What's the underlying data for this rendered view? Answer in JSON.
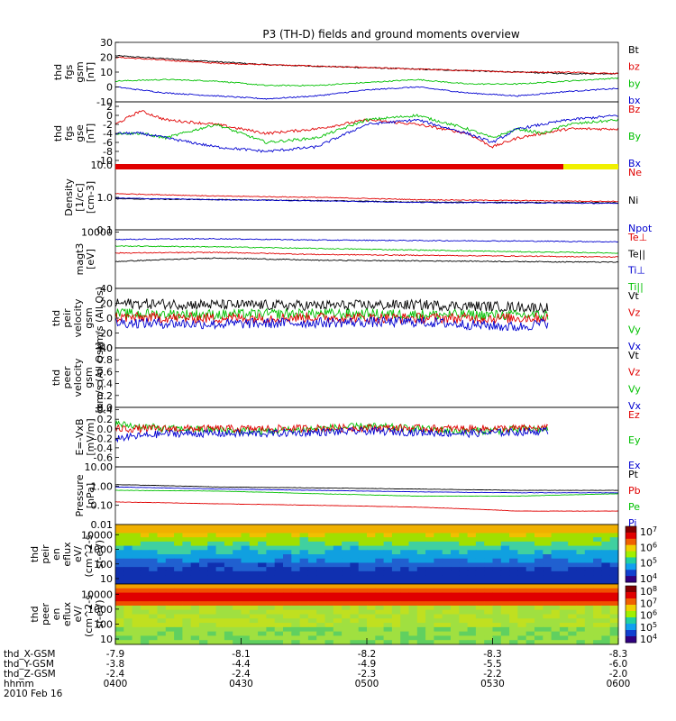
{
  "title": "P3 (TH-D) fields and ground moments overview",
  "chart_data": [
    {
      "type": "line",
      "id": "fgs-gsm",
      "ylabel": [
        "thd",
        "fgs",
        "gsm",
        "[nT]"
      ],
      "ylim": [
        -10,
        30
      ],
      "yticks": [
        {
          "v": 30,
          "t": "30"
        },
        {
          "v": 20,
          "t": "20"
        },
        {
          "v": 10,
          "t": "10"
        },
        {
          "v": 0,
          "t": "0"
        },
        {
          "v": -10,
          "t": "-10"
        }
      ],
      "legend": [
        {
          "t": "Bt",
          "c": "#000000"
        },
        {
          "t": "bz",
          "c": "#e00000"
        },
        {
          "t": "by",
          "c": "#00c000"
        },
        {
          "t": "bx",
          "c": "#0000d0"
        }
      ],
      "series": [
        {
          "name": "Bt",
          "color": "#000000",
          "x": [
            0,
            0.1,
            0.2,
            0.3,
            0.4,
            0.5,
            0.6,
            0.7,
            0.8,
            0.9,
            1
          ],
          "y": [
            21,
            19,
            17,
            15,
            14,
            13,
            12,
            11,
            10,
            9,
            9
          ]
        },
        {
          "name": "bz",
          "color": "#e00000",
          "x": [
            0,
            0.1,
            0.2,
            0.3,
            0.4,
            0.5,
            0.6,
            0.7,
            0.8,
            0.9,
            1
          ],
          "y": [
            20,
            18,
            16,
            15,
            14,
            13,
            12,
            11,
            10,
            10,
            9
          ]
        },
        {
          "name": "by",
          "color": "#00c000",
          "x": [
            0,
            0.1,
            0.2,
            0.3,
            0.4,
            0.5,
            0.6,
            0.7,
            0.8,
            0.9,
            1
          ],
          "y": [
            4,
            5,
            4,
            1,
            1,
            3,
            5,
            2,
            2,
            4,
            6
          ]
        },
        {
          "name": "bx",
          "color": "#0000d0",
          "x": [
            0,
            0.1,
            0.2,
            0.3,
            0.4,
            0.5,
            0.6,
            0.7,
            0.8,
            0.9,
            1
          ],
          "y": [
            0,
            -4,
            -6,
            -8,
            -6,
            -2,
            0,
            -4,
            -6,
            -3,
            -1
          ]
        }
      ]
    },
    {
      "type": "line",
      "id": "fgs-gse",
      "ylabel": [
        "thd",
        "fgs",
        "gse",
        "[nT]"
      ],
      "ylim": [
        -11,
        3
      ],
      "yticks": [
        {
          "v": 2,
          "t": "2"
        },
        {
          "v": 0,
          "t": "0"
        },
        {
          "v": -2,
          "t": "-2"
        },
        {
          "v": -4,
          "t": "-4"
        },
        {
          "v": -6,
          "t": "-6"
        },
        {
          "v": -8,
          "t": "-8"
        },
        {
          "v": -10,
          "t": "-10"
        }
      ],
      "legend": [
        {
          "t": "Bz",
          "c": "#e00000"
        },
        {
          "t": "By",
          "c": "#00c000"
        },
        {
          "t": "Bx",
          "c": "#0000d0"
        }
      ],
      "series": [
        {
          "name": "Bz",
          "color": "#e00000",
          "x": [
            0,
            0.05,
            0.1,
            0.2,
            0.3,
            0.4,
            0.5,
            0.6,
            0.7,
            0.75,
            0.8,
            0.85,
            0.9,
            1
          ],
          "y": [
            -2,
            1,
            -1,
            -2,
            -4,
            -3,
            -1,
            -2,
            -4,
            -7,
            -5,
            -4,
            -3,
            -3
          ]
        },
        {
          "name": "By",
          "color": "#00c000",
          "x": [
            0,
            0.05,
            0.1,
            0.2,
            0.3,
            0.4,
            0.5,
            0.6,
            0.7,
            0.75,
            0.8,
            0.85,
            0.9,
            1
          ],
          "y": [
            -4,
            -4,
            -5,
            -2,
            -6,
            -5,
            -1,
            0,
            -3,
            -5,
            -3,
            -4,
            -2,
            -1
          ]
        },
        {
          "name": "Bx",
          "color": "#0000d0",
          "x": [
            0,
            0.05,
            0.1,
            0.2,
            0.3,
            0.4,
            0.5,
            0.6,
            0.7,
            0.75,
            0.8,
            0.85,
            0.9,
            1
          ],
          "y": [
            -4,
            -4,
            -5,
            -7,
            -8,
            -7,
            -2,
            -1,
            -4,
            -6,
            -3,
            -2,
            -1,
            0
          ]
        }
      ]
    },
    {
      "type": "line",
      "id": "density",
      "ylabel": [
        "Density",
        "[1/cc]",
        "[cm-3]"
      ],
      "ylim": [
        0.1,
        10
      ],
      "scale": "log",
      "yticks": [
        {
          "v": 10,
          "t": "10.0"
        },
        {
          "v": 1,
          "t": "1.0"
        },
        {
          "v": 0.1,
          "t": "0.1"
        }
      ],
      "legend": [
        {
          "t": "Ne",
          "c": "#e00000"
        },
        {
          "t": "Ni",
          "c": "#000000"
        },
        {
          "t": "Npot",
          "c": "#0000d0"
        }
      ],
      "series": [
        {
          "name": "Ne",
          "color": "#e00000",
          "x": [
            0,
            0.2,
            0.4,
            0.6,
            0.8,
            1
          ],
          "y": [
            1.3,
            1.1,
            1.0,
            0.85,
            0.8,
            0.75
          ]
        },
        {
          "name": "Ni",
          "color": "#000000",
          "x": [
            0,
            0.2,
            0.4,
            0.6,
            0.8,
            1
          ],
          "y": [
            0.9,
            0.85,
            0.8,
            0.72,
            0.7,
            0.68
          ]
        },
        {
          "name": "Npot",
          "color": "#0000d0",
          "x": [
            0,
            0.2,
            0.4,
            0.6,
            0.8,
            1
          ],
          "y": [
            0.95,
            0.85,
            0.78,
            0.7,
            0.68,
            0.65
          ]
        }
      ]
    },
    {
      "type": "line",
      "id": "temp",
      "ylabel": [
        "magt3",
        "[eV]"
      ],
      "ylim": [
        100,
        12000
      ],
      "scale": "log",
      "yticks": [
        {
          "v": 10000,
          "t": "10000"
        }
      ],
      "legend": [
        {
          "t": "Te⊥",
          "c": "#e00000"
        },
        {
          "t": "Te||",
          "c": "#000000"
        },
        {
          "t": "Ti⊥",
          "c": "#0000d0"
        },
        {
          "t": "Ti||",
          "c": "#00c000"
        }
      ],
      "series": [
        {
          "name": "Ti⊥",
          "color": "#0000d0",
          "x": [
            0,
            0.2,
            0.4,
            0.6,
            0.8,
            1
          ],
          "y": [
            5500,
            5800,
            5200,
            5000,
            4800,
            4500
          ]
        },
        {
          "name": "Ti||",
          "color": "#00c000",
          "x": [
            0,
            0.2,
            0.4,
            0.6,
            0.8,
            1
          ],
          "y": [
            3200,
            3000,
            2600,
            2300,
            2000,
            1800
          ]
        },
        {
          "name": "Te⊥",
          "color": "#e00000",
          "x": [
            0,
            0.2,
            0.4,
            0.6,
            0.8,
            1
          ],
          "y": [
            1800,
            1900,
            1600,
            1500,
            1400,
            1300
          ]
        },
        {
          "name": "Te||",
          "color": "#000000",
          "x": [
            0,
            0.2,
            0.4,
            0.6,
            0.8,
            1
          ],
          "y": [
            900,
            1200,
            1000,
            950,
            900,
            850
          ]
        }
      ]
    },
    {
      "type": "line",
      "id": "peir-vel",
      "ylabel": [
        "thd",
        "peir",
        "velocity",
        "gsm",
        "km/s (All Qs)"
      ],
      "ylim": [
        -40,
        40
      ],
      "yticks": [
        {
          "v": 40,
          "t": "40"
        },
        {
          "v": 20,
          "t": "20"
        },
        {
          "v": 0,
          "t": "0"
        },
        {
          "v": -20,
          "t": "-20"
        },
        {
          "v": -40,
          "t": "-40"
        }
      ],
      "legend": [
        {
          "t": "Vt",
          "c": "#000000"
        },
        {
          "t": "Vz",
          "c": "#e00000"
        },
        {
          "t": "Vy",
          "c": "#00c000"
        },
        {
          "t": "Vx",
          "c": "#0000d0"
        }
      ],
      "series": [
        {
          "name": "Vt",
          "color": "#000000",
          "x": [
            0,
            0.2,
            0.4,
            0.6,
            0.8,
            0.86
          ],
          "y": [
            20,
            18,
            17,
            18,
            15,
            14
          ]
        },
        {
          "name": "Vy",
          "color": "#00c000",
          "x": [
            0,
            0.2,
            0.4,
            0.6,
            0.8,
            0.86
          ],
          "y": [
            6,
            5,
            6,
            5,
            4,
            4
          ]
        },
        {
          "name": "Vz",
          "color": "#e00000",
          "x": [
            0,
            0.2,
            0.4,
            0.6,
            0.8,
            0.86
          ],
          "y": [
            1,
            0,
            1,
            0,
            0,
            1
          ]
        },
        {
          "name": "Vx",
          "color": "#0000d0",
          "x": [
            0,
            0.2,
            0.4,
            0.6,
            0.8,
            0.86
          ],
          "y": [
            -6,
            -8,
            -6,
            -5,
            -12,
            -6
          ]
        }
      ]
    },
    {
      "type": "line",
      "id": "peer-vel",
      "ylabel": [
        "thd",
        "peer",
        "velocity",
        "gsm",
        "[km/s (All Qs)]"
      ],
      "ylim": [
        0,
        1
      ],
      "yticks": [
        {
          "v": 1,
          "t": "1.0"
        },
        {
          "v": 0.8,
          "t": "0.8"
        },
        {
          "v": 0.6,
          "t": "0.6"
        },
        {
          "v": 0.4,
          "t": "0.4"
        },
        {
          "v": 0.2,
          "t": "0.2"
        },
        {
          "v": 0,
          "t": "0.0"
        }
      ],
      "legend": [
        {
          "t": "Vt",
          "c": "#000000"
        },
        {
          "t": "Vz",
          "c": "#e00000"
        },
        {
          "t": "Vy",
          "c": "#00c000"
        },
        {
          "t": "Vx",
          "c": "#0000d0"
        }
      ],
      "series": []
    },
    {
      "type": "line",
      "id": "efield",
      "ylabel": [
        "E=-VxB",
        "[mV/m]"
      ],
      "ylim": [
        -0.8,
        0.45
      ],
      "yticks": [
        {
          "v": 0.4,
          "t": "0.4"
        },
        {
          "v": 0.2,
          "t": "0.2"
        },
        {
          "v": 0,
          "t": "0.0"
        },
        {
          "v": -0.2,
          "t": "-0.2"
        },
        {
          "v": -0.4,
          "t": "-0.4"
        },
        {
          "v": -0.6,
          "t": "-0.6"
        }
      ],
      "legend": [
        {
          "t": "Ez",
          "c": "#e00000"
        },
        {
          "t": "Ey",
          "c": "#00c000"
        },
        {
          "t": "Ex",
          "c": "#0000d0"
        }
      ],
      "series": [
        {
          "name": "Ey",
          "color": "#00c000",
          "x": [
            0,
            0.1,
            0.3,
            0.5,
            0.7,
            0.86
          ],
          "y": [
            0.1,
            0.0,
            -0.05,
            0.05,
            -0.05,
            0.0
          ]
        },
        {
          "name": "Ez",
          "color": "#e00000",
          "x": [
            0,
            0.1,
            0.3,
            0.5,
            0.7,
            0.86
          ],
          "y": [
            0.0,
            0.0,
            0.0,
            0.02,
            0.0,
            0.01
          ]
        },
        {
          "name": "Ex",
          "color": "#0000d0",
          "x": [
            0,
            0.1,
            0.3,
            0.5,
            0.7,
            0.86
          ],
          "y": [
            -0.2,
            -0.1,
            -0.1,
            -0.05,
            -0.1,
            -0.05
          ]
        }
      ]
    },
    {
      "type": "line",
      "id": "pressure",
      "ylabel": [
        "Pressure",
        "[nPa]"
      ],
      "ylim": [
        0.01,
        10
      ],
      "scale": "log",
      "yticks": [
        {
          "v": 10,
          "t": "10.00"
        },
        {
          "v": 1,
          "t": "1.00"
        },
        {
          "v": 0.1,
          "t": "0.10"
        },
        {
          "v": 0.01,
          "t": "0.01"
        }
      ],
      "legend": [
        {
          "t": "Pt",
          "c": "#000000"
        },
        {
          "t": "Pb",
          "c": "#e00000"
        },
        {
          "t": "Pe",
          "c": "#00c000"
        },
        {
          "t": "Pi",
          "c": "#0000d0"
        }
      ],
      "series": [
        {
          "name": "Pt",
          "color": "#000000",
          "x": [
            0,
            0.2,
            0.4,
            0.6,
            0.8,
            1
          ],
          "y": [
            1.2,
            0.9,
            0.8,
            0.7,
            0.6,
            0.6
          ]
        },
        {
          "name": "Pi",
          "color": "#0000d0",
          "x": [
            0,
            0.2,
            0.4,
            0.6,
            0.8,
            1
          ],
          "y": [
            0.9,
            0.7,
            0.6,
            0.5,
            0.45,
            0.45
          ]
        },
        {
          "name": "Pe",
          "color": "#00c000",
          "x": [
            0,
            0.2,
            0.4,
            0.6,
            0.8,
            1
          ],
          "y": [
            0.6,
            0.55,
            0.4,
            0.3,
            0.3,
            0.4
          ]
        },
        {
          "name": "Pb",
          "color": "#e00000",
          "x": [
            0,
            0.2,
            0.4,
            0.6,
            0.8,
            1
          ],
          "y": [
            0.15,
            0.12,
            0.1,
            0.08,
            0.05,
            0.05
          ]
        }
      ]
    },
    {
      "type": "heatmap",
      "id": "peir-en",
      "ylabel": [
        "thd",
        "peir",
        "en",
        "eflux",
        "eV/",
        "(cm^2-s-",
        "sr-eV)"
      ],
      "yticks": [
        {
          "v": 10000,
          "t": "10000"
        },
        {
          "v": 1000,
          "t": "1000"
        },
        {
          "v": 100,
          "t": "100"
        },
        {
          "v": 10,
          "t": "10"
        }
      ],
      "colorbar_ticks": [
        "10^7",
        "10^6",
        "10^5",
        "10^4"
      ]
    },
    {
      "type": "heatmap",
      "id": "peer-en",
      "ylabel": [
        "thd",
        "peer",
        "en",
        "eflux",
        "eV/",
        "(cm^2-s-",
        "sr-eV)"
      ],
      "yticks": [
        {
          "v": 10000,
          "t": "10000"
        },
        {
          "v": 1000,
          "t": "1000"
        },
        {
          "v": 100,
          "t": "100"
        },
        {
          "v": 10,
          "t": "10"
        }
      ],
      "colorbar_ticks": [
        "10^8",
        "10^7",
        "10^6",
        "10^5",
        "10^4"
      ]
    }
  ],
  "x_axis": {
    "rows": [
      {
        "label": "thd_X-GSM",
        "values": [
          "-7.9",
          "-8.1",
          "-8.2",
          "-8.3",
          "-8.3"
        ]
      },
      {
        "label": "thd_Y-GSM",
        "values": [
          "-3.8",
          "-4.4",
          "-4.9",
          "-5.5",
          "-6.0"
        ]
      },
      {
        "label": "thd_Z-GSM",
        "values": [
          "-2.4",
          "-2.4",
          "-2.3",
          "-2.2",
          "-2.0"
        ]
      },
      {
        "label": "hhmm",
        "values": [
          "0400",
          "0430",
          "0500",
          "0530",
          "0600"
        ]
      }
    ],
    "date": "2010 Feb 16"
  }
}
